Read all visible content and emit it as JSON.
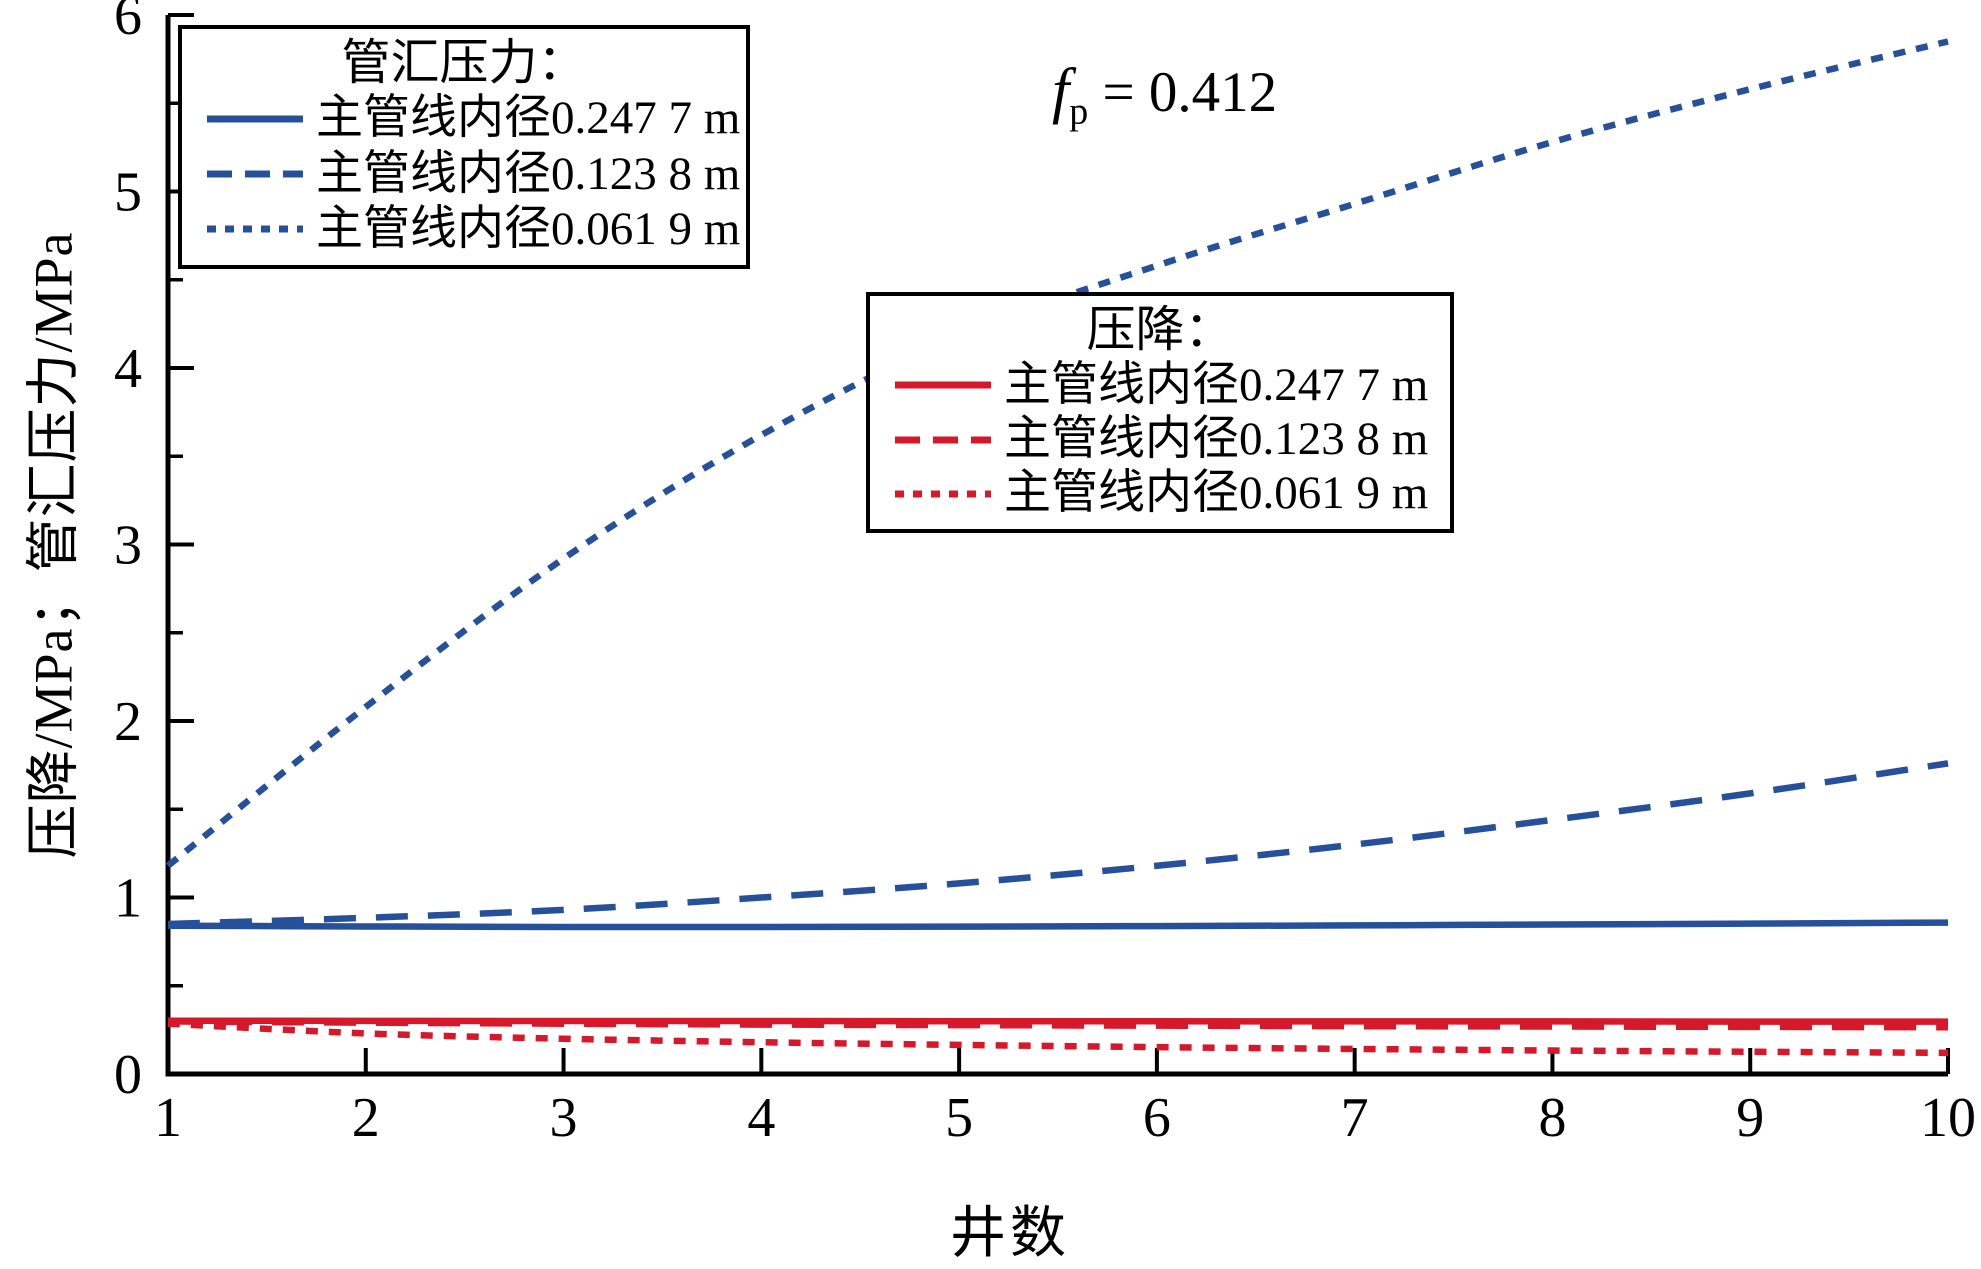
{
  "figure": {
    "x_axis_title": "井数",
    "y_axis_title": "压降/MPa；管汇压力/MPa",
    "annotation": {
      "symbol": "f",
      "subscript": "p",
      "rest": " = 0.412"
    }
  },
  "colors": {
    "blue": "#27509B",
    "red": "#D6182B",
    "axis": "#000000"
  },
  "legends": [
    {
      "title": "管汇压力：",
      "items": [
        {
          "label": "主管线内径0.247 7 m",
          "series": 0
        },
        {
          "label": "主管线内径0.123 8 m",
          "series": 1
        },
        {
          "label": "主管线内径0.061 9 m",
          "series": 2
        }
      ]
    },
    {
      "title": "压降：",
      "items": [
        {
          "label": "主管线内径0.247 7 m",
          "series": 3
        },
        {
          "label": "主管线内径0.123 8 m",
          "series": 4
        },
        {
          "label": "主管线内径0.061 9 m",
          "series": 5
        }
      ]
    }
  ],
  "chart_data": {
    "type": "line",
    "title": "",
    "xlabel": "井数",
    "ylabel": "压降/MPa；管汇压力/MPa",
    "annotation": "fp = 0.412",
    "xlim": [
      1,
      10
    ],
    "ylim": [
      0,
      6
    ],
    "x_ticks": [
      1,
      2,
      3,
      4,
      5,
      6,
      7,
      8,
      9,
      10
    ],
    "y_ticks": [
      0,
      1,
      2,
      3,
      4,
      5,
      6
    ],
    "y_minor_tick_step": 0.5,
    "grid": false,
    "legend_position": "two boxes inside plot, upper-left and center-right",
    "x": [
      1,
      2,
      3,
      4,
      5,
      6,
      7,
      8,
      9,
      10
    ],
    "series": [
      {
        "name": "管汇压力 主管线内径0.247 7 m",
        "group": "管汇压力",
        "color": "#27509B",
        "dash": "solid",
        "values": [
          0.84,
          0.836,
          0.833,
          0.833,
          0.835,
          0.838,
          0.842,
          0.847,
          0.852,
          0.858
        ]
      },
      {
        "name": "管汇压力 主管线内径0.123 8 m",
        "group": "管汇压力",
        "color": "#27509B",
        "dash": "dashed",
        "values": [
          0.85,
          0.885,
          0.93,
          1.0,
          1.08,
          1.18,
          1.3,
          1.44,
          1.59,
          1.76
        ]
      },
      {
        "name": "管汇压力 主管线内径0.061 9 m",
        "group": "管汇压力",
        "color": "#27509B",
        "dash": "dotted",
        "values": [
          1.18,
          2.08,
          2.92,
          3.62,
          4.18,
          4.58,
          4.93,
          5.28,
          5.58,
          5.85
        ]
      },
      {
        "name": "压降 主管线内径0.247 7 m",
        "group": "压降",
        "color": "#D6182B",
        "dash": "solid",
        "values": [
          0.302,
          0.301,
          0.3,
          0.3,
          0.299,
          0.299,
          0.298,
          0.298,
          0.297,
          0.297
        ]
      },
      {
        "name": "压降 主管线内径0.123 8 m",
        "group": "压降",
        "color": "#D6182B",
        "dash": "dashed",
        "values": [
          0.298,
          0.291,
          0.285,
          0.28,
          0.277,
          0.274,
          0.271,
          0.269,
          0.267,
          0.265
        ]
      },
      {
        "name": "压降 主管线内径0.061 9 m",
        "group": "压降",
        "color": "#D6182B",
        "dash": "dotted",
        "values": [
          0.285,
          0.23,
          0.2,
          0.18,
          0.165,
          0.152,
          0.142,
          0.133,
          0.126,
          0.12
        ]
      }
    ]
  }
}
